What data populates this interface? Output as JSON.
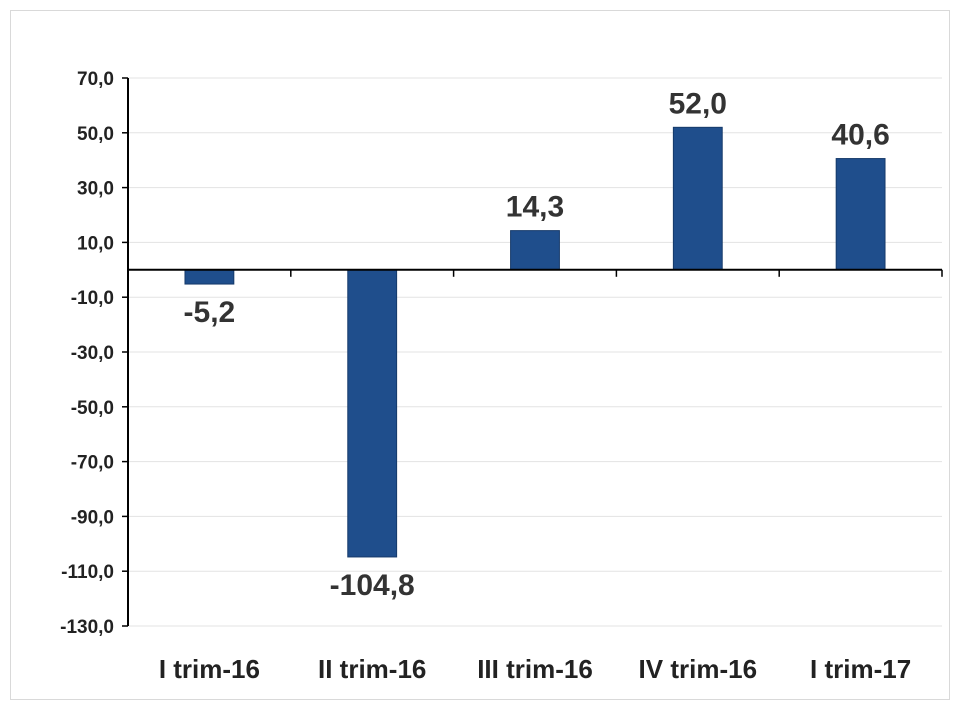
{
  "chart_data": {
    "type": "bar",
    "categories": [
      "I trim-16",
      "II trim-16",
      "III trim-16",
      "IV trim-16",
      "I trim-17"
    ],
    "values": [
      -5.2,
      -104.8,
      14.3,
      52.0,
      40.6
    ],
    "data_labels": [
      "-5,2",
      "-104,8",
      "14,3",
      "52,0",
      "40,6"
    ],
    "yticks": [
      70,
      50,
      30,
      10,
      -10,
      -30,
      -50,
      -70,
      -90,
      -110,
      -130
    ],
    "ytick_labels": [
      "70,0",
      "50,0",
      "30,0",
      "10,0",
      "-10,0",
      "-30,0",
      "-50,0",
      "-70,0",
      "-90,0",
      "-110,0",
      "-130,0"
    ],
    "ylim": [
      -130,
      70
    ],
    "grid": true,
    "bar_color": "#1f4e8c",
    "title": "",
    "xlabel": "",
    "ylabel": ""
  }
}
